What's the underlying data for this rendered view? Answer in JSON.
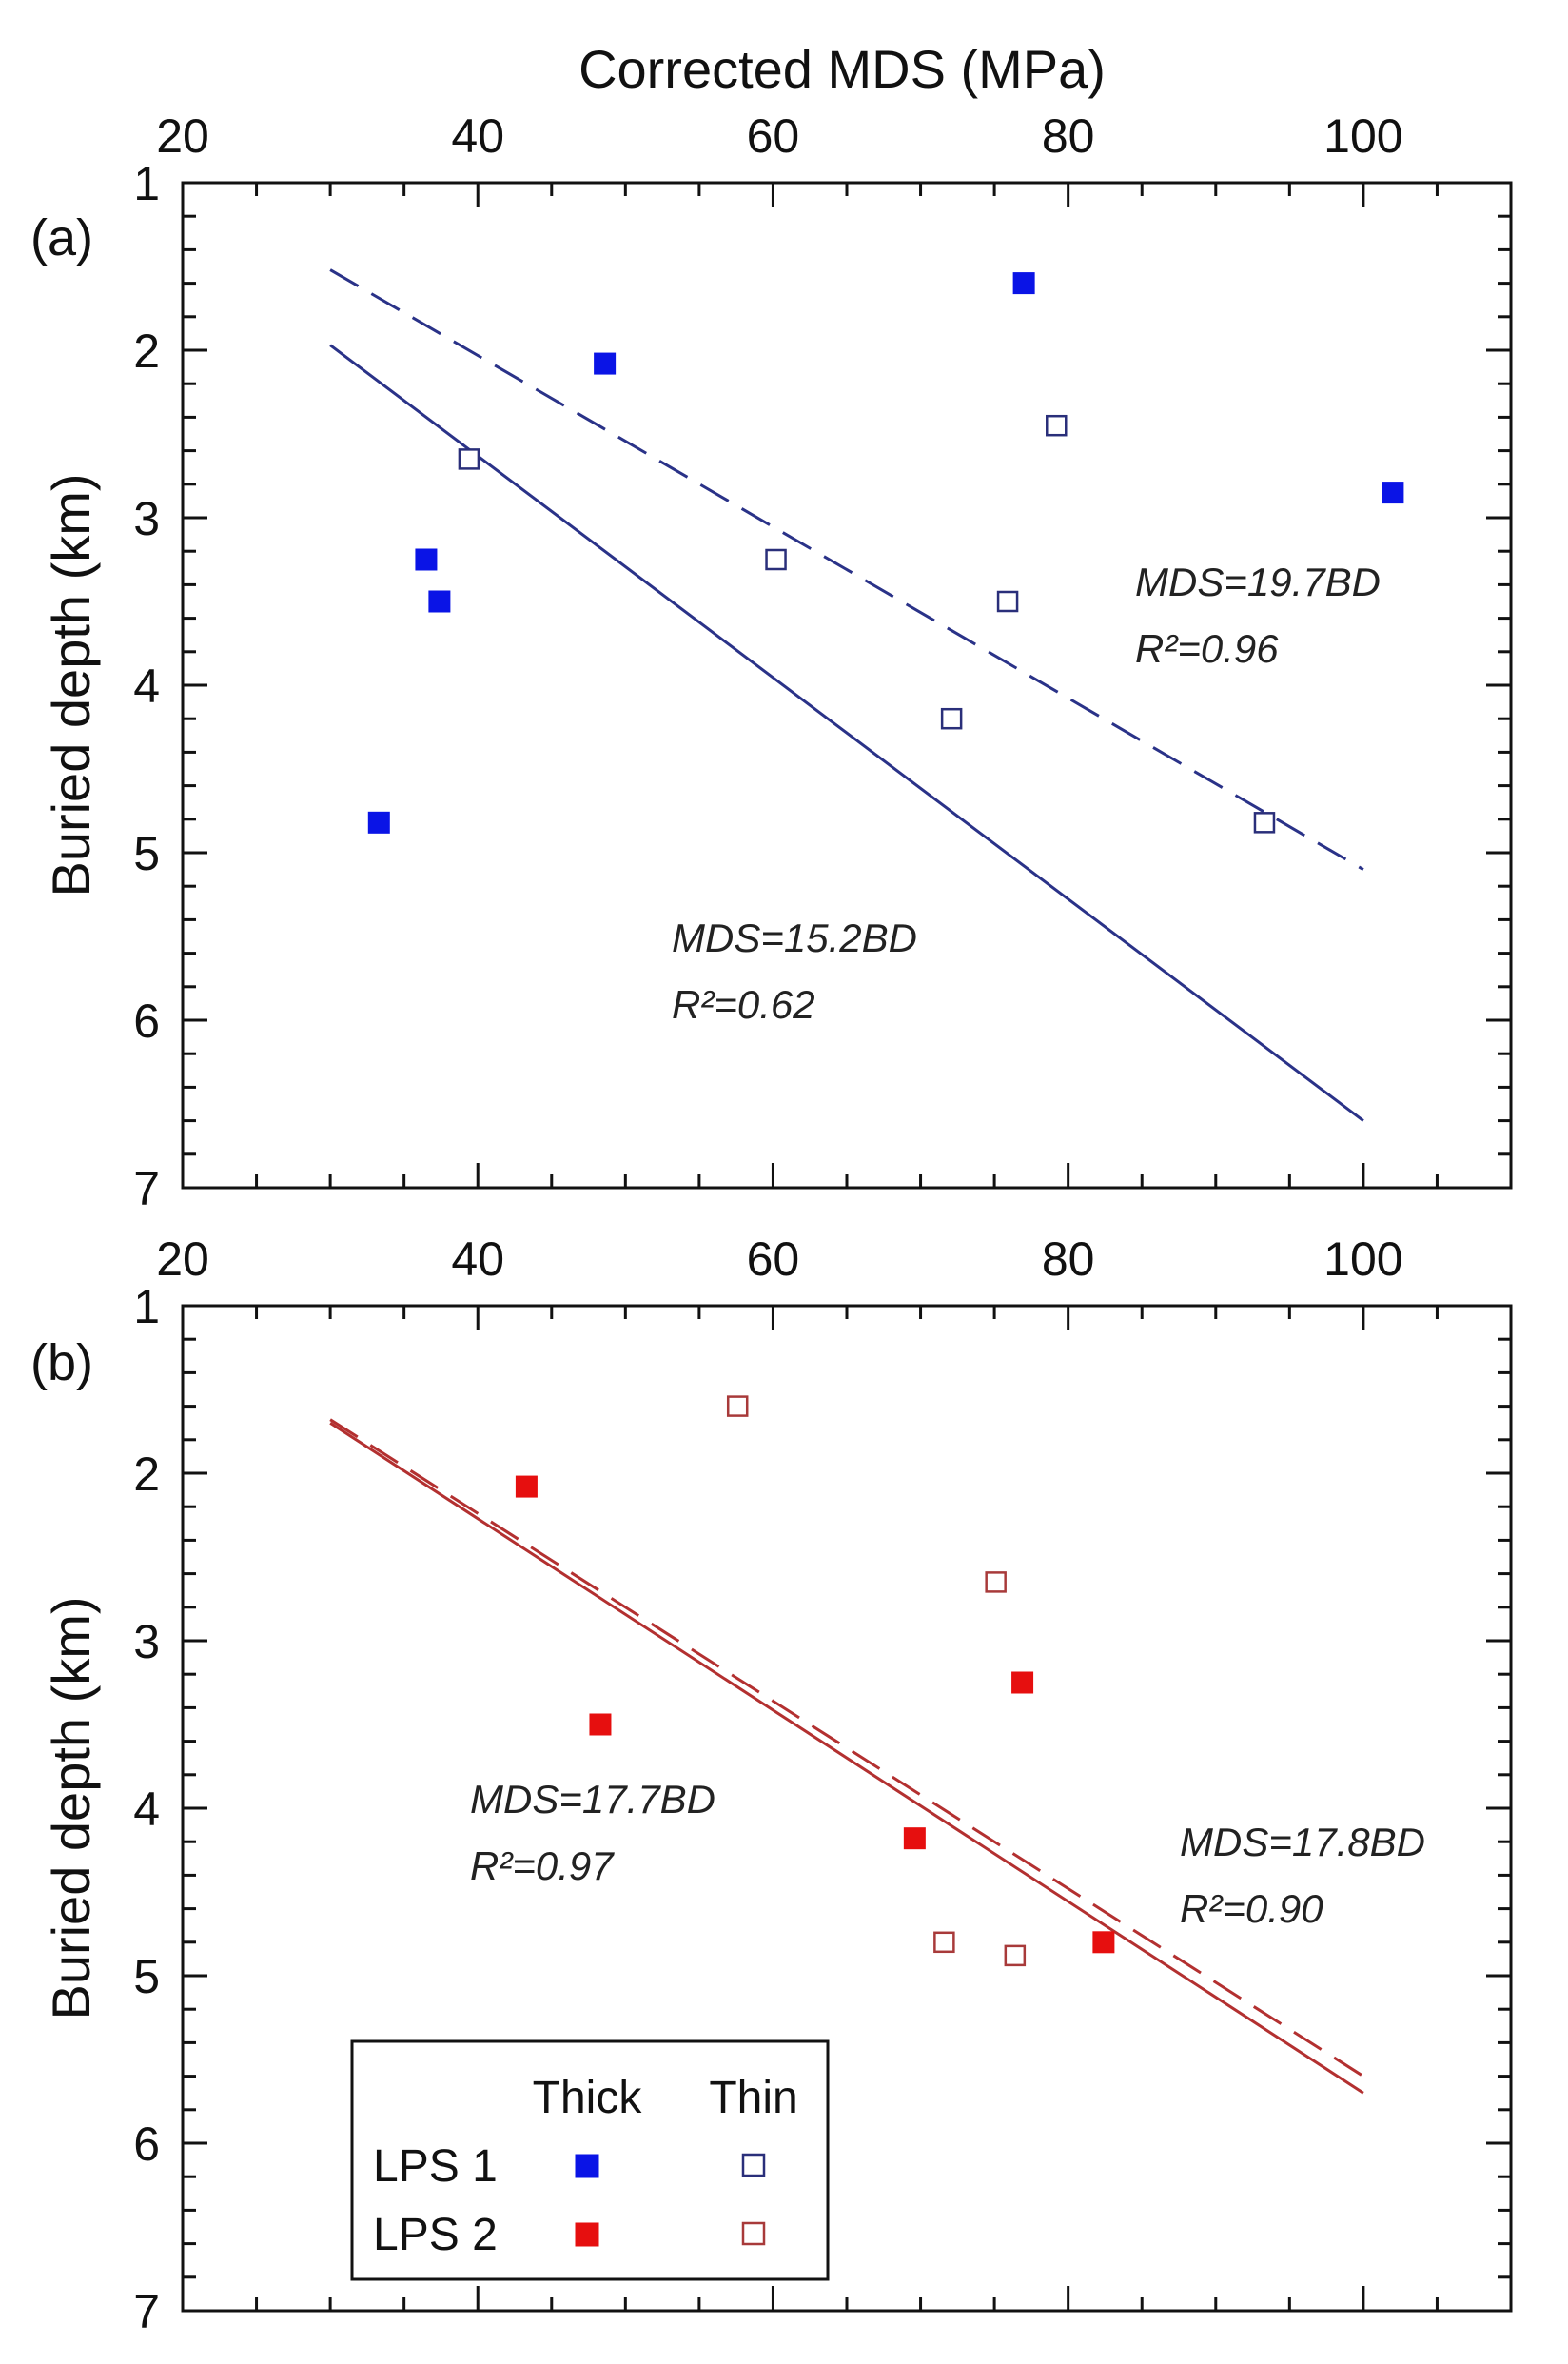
{
  "figure": {
    "top_xlabel": "Corrected MDS (MPa)"
  },
  "chart_data": [
    {
      "panel": "(a)",
      "type": "scatter",
      "xlabel": "Corrected MDS (MPa)",
      "ylabel": "Buried depth (km)",
      "xlim": [
        20,
        110
      ],
      "ylim": [
        1,
        7
      ],
      "y_inverted": true,
      "x_ticks": [
        20,
        40,
        60,
        80,
        100
      ],
      "y_ticks": [
        1,
        2,
        3,
        4,
        5,
        6,
        7
      ],
      "grid": false,
      "series": [
        {
          "name": "LPS 1 Thick",
          "marker": "filled-square",
          "color": "#0a14e6",
          "points": [
            {
              "x": 77,
              "y": 1.6
            },
            {
              "x": 48.6,
              "y": 2.08
            },
            {
              "x": 36.5,
              "y": 3.25
            },
            {
              "x": 37.4,
              "y": 3.5
            },
            {
              "x": 33.3,
              "y": 4.82
            },
            {
              "x": 102,
              "y": 2.85
            }
          ]
        },
        {
          "name": "LPS 1 Thin",
          "marker": "open-square",
          "color": "#2a2f7a",
          "points": [
            {
              "x": 39.4,
              "y": 2.65
            },
            {
              "x": 60.2,
              "y": 3.25
            },
            {
              "x": 79.2,
              "y": 2.45
            },
            {
              "x": 75.9,
              "y": 3.5
            },
            {
              "x": 72.1,
              "y": 4.2
            },
            {
              "x": 93.3,
              "y": 4.82
            }
          ]
        }
      ],
      "fit_lines": [
        {
          "style": "dashed",
          "color": "#2a3288",
          "x": [
            30,
            100
          ],
          "y": [
            1.52,
            5.1
          ],
          "equation": "MDS=19.7BD",
          "r2": "R²=0.96"
        },
        {
          "style": "solid",
          "color": "#2a3288",
          "x": [
            30,
            100
          ],
          "y": [
            1.97,
            6.6
          ],
          "equation": "MDS=15.2BD",
          "r2": "R²=0.62"
        }
      ]
    },
    {
      "panel": "(b)",
      "type": "scatter",
      "xlabel": "",
      "ylabel": "Buried depth (km)",
      "xlim": [
        20,
        110
      ],
      "ylim": [
        1,
        7
      ],
      "y_inverted": true,
      "x_ticks": [
        20,
        40,
        60,
        80,
        100
      ],
      "y_ticks": [
        1,
        2,
        3,
        4,
        5,
        6,
        7
      ],
      "grid": false,
      "series": [
        {
          "name": "LPS 2 Thick",
          "marker": "filled-square",
          "color": "#e60f0f",
          "points": [
            {
              "x": 43.3,
              "y": 2.08
            },
            {
              "x": 48.3,
              "y": 3.5
            },
            {
              "x": 76.9,
              "y": 3.25
            },
            {
              "x": 69.6,
              "y": 4.18
            },
            {
              "x": 82.4,
              "y": 4.8
            }
          ]
        },
        {
          "name": "LPS 2 Thin",
          "marker": "open-square",
          "color": "#a83a3a",
          "points": [
            {
              "x": 57.6,
              "y": 1.6
            },
            {
              "x": 75.1,
              "y": 2.65
            },
            {
              "x": 71.6,
              "y": 4.8
            },
            {
              "x": 76.4,
              "y": 4.88
            }
          ]
        }
      ],
      "fit_lines": [
        {
          "style": "dashed",
          "color": "#b33030",
          "x": [
            30,
            100
          ],
          "y": [
            1.68,
            5.6
          ],
          "equation": "MDS=17.8BD",
          "r2": "R²=0.90"
        },
        {
          "style": "solid",
          "color": "#b33030",
          "x": [
            30,
            100
          ],
          "y": [
            1.7,
            5.7
          ],
          "equation": "MDS=17.7BD",
          "r2": "R²=0.97"
        }
      ]
    }
  ],
  "legend": {
    "placement": "bottom-left",
    "col_thick": "Thick",
    "col_thin": "Thin",
    "rows": [
      {
        "label": "LPS 1",
        "thick_color": "#0a14e6",
        "thin_color": "#2a2f7a"
      },
      {
        "label": "LPS 2",
        "thick_color": "#e60f0f",
        "thin_color": "#a83a3a"
      }
    ]
  }
}
